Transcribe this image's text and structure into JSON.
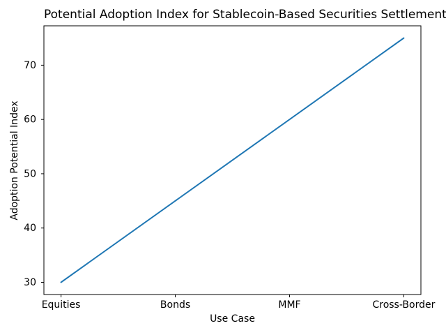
{
  "window": {
    "background_color": "#ffffff"
  },
  "chart_data": {
    "type": "line",
    "title": "Potential Adoption Index for Stablecoin-Based Securities Settlement",
    "xlabel": "Use Case",
    "ylabel": "Adoption Potential Index",
    "categories": [
      "Equities",
      "Bonds",
      "MMF",
      "Cross-Border"
    ],
    "series": [
      {
        "name": "Adoption Potential Index",
        "values": [
          30,
          45,
          60,
          75
        ]
      }
    ],
    "yticks": [
      30,
      40,
      50,
      60,
      70
    ],
    "xlim": [
      -0.15,
      3.15
    ],
    "ylim": [
      27.75,
      77.25
    ],
    "grid": false,
    "legend_visible": false,
    "line_color": "#1f77b4",
    "axis_color": "#000000",
    "text_color": "#000000"
  }
}
